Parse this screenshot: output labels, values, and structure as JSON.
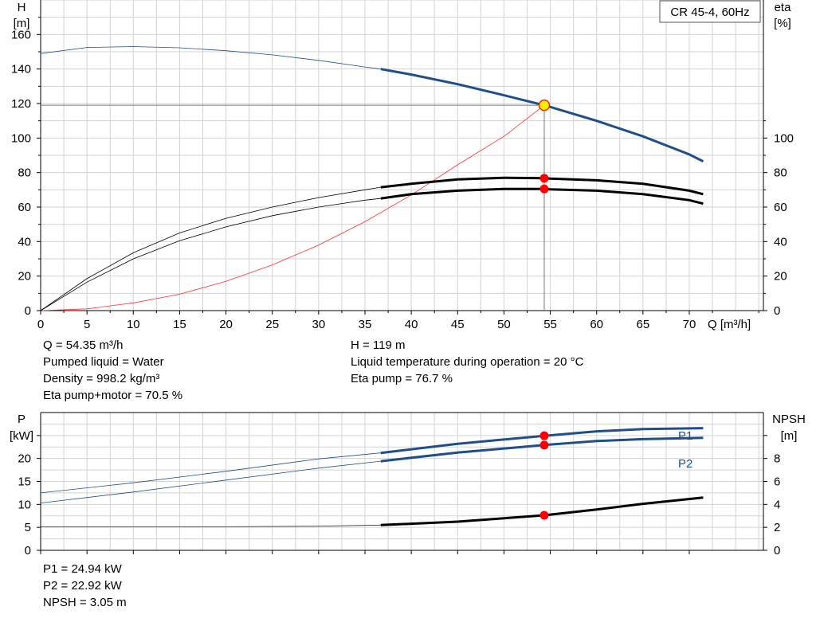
{
  "legend_box": "CR 45-4, 60Hz",
  "upper_info_left": [
    "Q = 54.35 m³/h",
    "Pumped liquid = Water",
    "Density = 998.2 kg/m³",
    "Eta pump+motor = 70.5 %"
  ],
  "upper_info_right": [
    "H = 119 m",
    "Liquid temperature during operation = 20 °C",
    "Eta pump = 76.7 %"
  ],
  "lower_info": [
    "P1 = 24.94 kW",
    "P2 = 22.92 kW",
    "NPSH = 3.05 m"
  ],
  "colors": {
    "head": "#1f4e89",
    "power": "#1f4e89",
    "efficiency": "#000000",
    "system_curve": "#ff3030",
    "marker": "#ff0000",
    "operating_point": "#ffee00"
  },
  "chart_data": [
    {
      "type": "line",
      "name": "pump-performance",
      "x_label_unit": "Q [m³/h]",
      "left_axis": {
        "label": "H",
        "unit": "[m]",
        "ticks": [
          0,
          20,
          40,
          60,
          80,
          100,
          120,
          140,
          160
        ],
        "range": [
          0,
          180
        ]
      },
      "right_axis": {
        "label": "eta",
        "unit": "[%]",
        "ticks": [
          0,
          20,
          40,
          60,
          80,
          100
        ],
        "range": [
          0,
          180
        ]
      },
      "x_ticks": [
        0,
        5,
        10,
        15,
        20,
        25,
        30,
        35,
        40,
        45,
        50,
        55,
        60,
        65,
        70
      ],
      "xlim": [
        0,
        78
      ],
      "grid": true,
      "series": [
        {
          "key": "head",
          "x": [
            0,
            5,
            10,
            15,
            20,
            25,
            30,
            35,
            36.7,
            40,
            45,
            50,
            54.35,
            55,
            60,
            65,
            70,
            71.5
          ],
          "y": [
            149,
            152.5,
            153,
            152.3,
            150.6,
            148.2,
            145,
            141.2,
            140,
            136.8,
            131.2,
            124.8,
            119,
            118,
            110,
            101,
            90.5,
            86.5
          ]
        },
        {
          "key": "eta_pump",
          "x": [
            0,
            5,
            10,
            15,
            20,
            25,
            30,
            35,
            36.7,
            40,
            45,
            50,
            54.35,
            55,
            60,
            65,
            70,
            71.5
          ],
          "y": [
            0,
            18.5,
            33.5,
            45,
            53.5,
            60,
            65.5,
            70,
            71.5,
            73.5,
            76,
            77,
            76.7,
            76.5,
            75.5,
            73.5,
            69.5,
            67.5
          ]
        },
        {
          "key": "eta_total",
          "x": [
            0,
            5,
            10,
            15,
            20,
            25,
            30,
            35,
            36.7,
            40,
            45,
            50,
            54.35,
            55,
            60,
            65,
            70,
            71.5
          ],
          "y": [
            0,
            16.5,
            30,
            40.5,
            48.5,
            55,
            60,
            64,
            65,
            67.5,
            69.5,
            70.5,
            70.5,
            70.3,
            69.5,
            67.5,
            64,
            62
          ]
        },
        {
          "key": "system",
          "x": [
            0,
            5,
            10,
            15,
            20,
            25,
            30,
            35,
            40,
            45,
            50,
            54.35
          ],
          "y": [
            0,
            1,
            4.5,
            9.5,
            17,
            26.5,
            38,
            51.5,
            67,
            84.5,
            101,
            119
          ]
        }
      ],
      "bold_from_x": 36.7,
      "operating_point": {
        "q": 54.35,
        "h": 119,
        "eta_pump": 76.7,
        "eta_total": 70.5
      }
    },
    {
      "type": "line",
      "name": "power-npsh",
      "left_axis": {
        "label": "P",
        "unit": "[kW]",
        "ticks": [
          0,
          5,
          10,
          15,
          20
        ],
        "range": [
          0,
          30
        ]
      },
      "right_axis": {
        "label": "NPSH",
        "unit": "[m]",
        "ticks": [
          0,
          2,
          4,
          6,
          8
        ],
        "range": [
          0,
          12
        ]
      },
      "x_ticks": [
        0,
        5,
        10,
        15,
        20,
        25,
        30,
        35,
        40,
        45,
        50,
        55,
        60,
        65,
        70
      ],
      "xlim": [
        0,
        78
      ],
      "grid": true,
      "series": [
        {
          "key": "P1",
          "name": "P1",
          "x": [
            0,
            10,
            20,
            30,
            36.7,
            45,
            54.35,
            60,
            65,
            71.5
          ],
          "y": [
            12.5,
            14.7,
            17.2,
            19.9,
            21.2,
            23.2,
            24.94,
            25.9,
            26.4,
            26.6
          ]
        },
        {
          "key": "P2",
          "name": "P2",
          "x": [
            0,
            10,
            20,
            30,
            36.7,
            45,
            54.35,
            60,
            65,
            71.5
          ],
          "y": [
            10.3,
            12.7,
            15.3,
            17.9,
            19.4,
            21.3,
            22.92,
            23.8,
            24.2,
            24.5
          ]
        },
        {
          "key": "NPSH",
          "x": [
            0,
            10,
            20,
            30,
            36.7,
            45,
            54.35,
            60,
            65,
            71.5
          ],
          "y": [
            2.05,
            2.05,
            2.05,
            2.1,
            2.2,
            2.5,
            3.05,
            3.55,
            4.05,
            4.6
          ]
        }
      ],
      "bold_from_x": 36.7,
      "operating_point": {
        "q": 54.35,
        "P1": 24.94,
        "P2": 22.92,
        "NPSH": 3.05
      }
    }
  ]
}
